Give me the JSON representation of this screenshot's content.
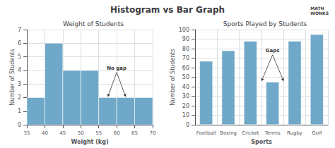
{
  "title": "Histogram vs Bar Graph",
  "annotations": [
    "MATH\nWONKS"
  ],
  "chart_data": [
    {
      "type": "histogram",
      "title": "Weight of Students",
      "xlabel": "Weight (kg)",
      "ylabel": "Number of Students",
      "bins": [
        35,
        40,
        45,
        50,
        55,
        60,
        65,
        70
      ],
      "values": [
        2,
        6,
        4,
        4,
        2,
        2,
        2
      ],
      "color": "#6fa8c8",
      "xlim": [
        35,
        70
      ],
      "xticks": [
        35,
        40,
        45,
        50,
        55,
        60,
        65,
        70
      ],
      "ylim": [
        0,
        7
      ],
      "yticks": [
        0,
        1,
        2,
        3,
        4,
        5,
        6,
        7
      ],
      "grid": true,
      "annotations": [
        "No gap"
      ]
    },
    {
      "type": "bar",
      "title": "Sports Played by Students",
      "xlabel": "Sports",
      "ylabel": "Number of Students",
      "categories": [
        "Football",
        "Boxing",
        "Cricket",
        "Tennis",
        "Rugby",
        "Golf"
      ],
      "values": [
        67,
        78,
        88,
        45,
        88,
        95
      ],
      "color": "#6fa8c8",
      "ylim": [
        0,
        100
      ],
      "yticks": [
        0,
        10,
        20,
        30,
        40,
        50,
        60,
        70,
        80,
        90,
        100
      ],
      "grid": true,
      "annotations": [
        "Gaps"
      ]
    }
  ]
}
